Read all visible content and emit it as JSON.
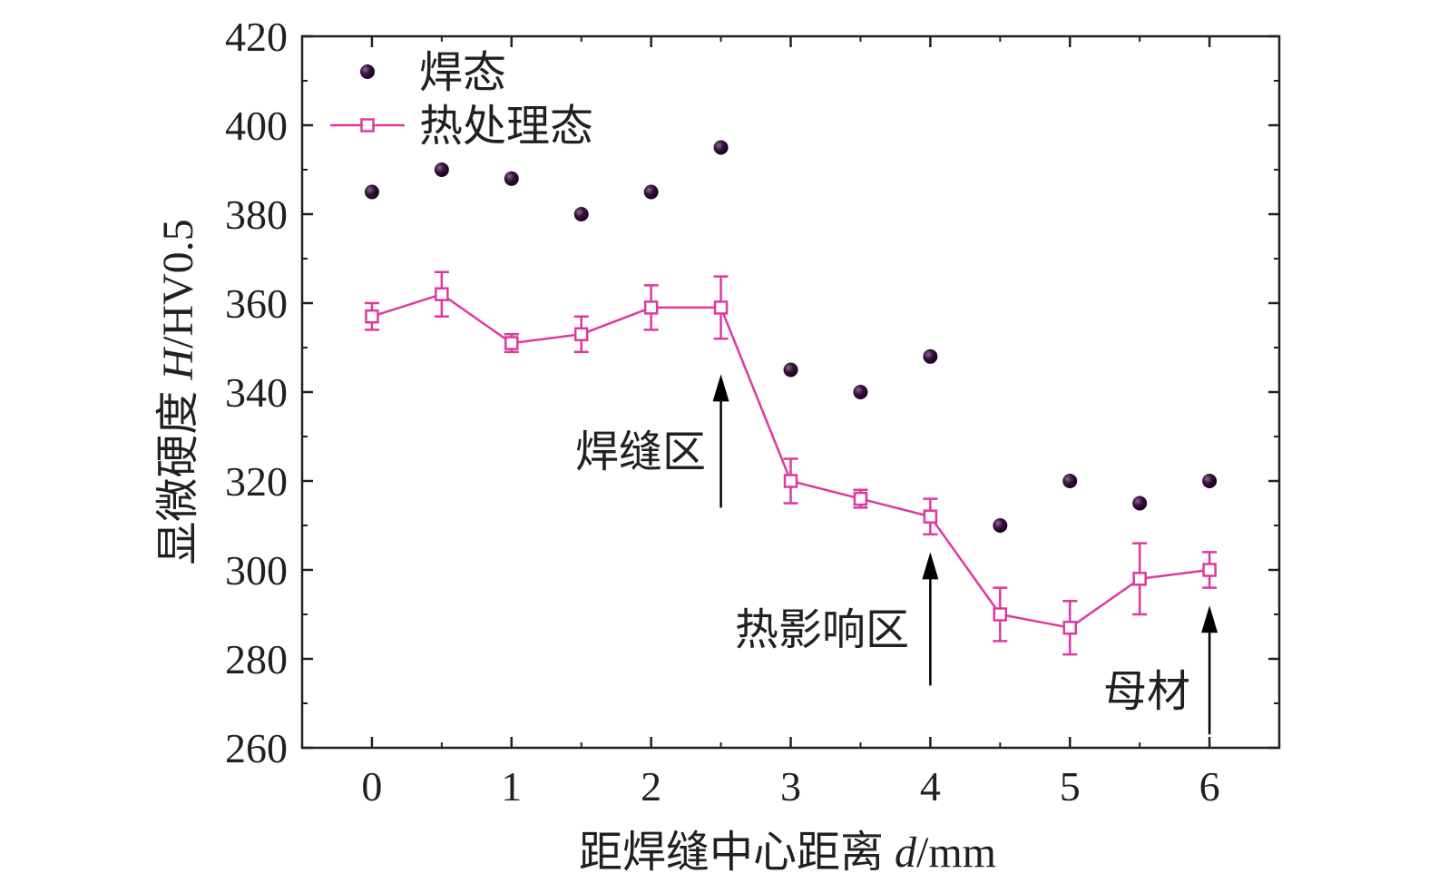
{
  "chart_data": {
    "type": "scatter",
    "xlabel_prefix": "距焊缝中心距离 ",
    "xlabel_var": "d",
    "xlabel_unit": "/mm",
    "ylabel_prefix": "显微硬度 ",
    "ylabel_var": "H",
    "ylabel_unit": "/HV0.5",
    "xlim": [
      -0.5,
      6.5
    ],
    "ylim": [
      260,
      420
    ],
    "xticks": [
      0,
      1,
      2,
      3,
      4,
      5,
      6
    ],
    "xtick_labels": [
      "0",
      "1",
      "2",
      "3",
      "4",
      "5",
      "6"
    ],
    "yticks": [
      260,
      280,
      300,
      320,
      340,
      360,
      380,
      400,
      420
    ],
    "ytick_labels": [
      "260",
      "280",
      "300",
      "320",
      "340",
      "360",
      "380",
      "400",
      "420"
    ],
    "legend_position": "top-left",
    "series": [
      {
        "name": "焊态",
        "style": "dots",
        "color": "#2a0a2e",
        "x": [
          0,
          0.5,
          1,
          1.5,
          2,
          2.5,
          3,
          3.5,
          4,
          4.5,
          5,
          5.5,
          6
        ],
        "y": [
          385,
          390,
          388,
          380,
          385,
          395,
          345,
          340,
          348,
          310,
          320,
          315,
          320
        ]
      },
      {
        "name": "热处理态",
        "style": "line-square-errorbar",
        "color": "#e0379f",
        "x": [
          0,
          0.5,
          1,
          1.5,
          2,
          2.5,
          3,
          3.5,
          4,
          4.5,
          5,
          5.5,
          6
        ],
        "y": [
          357,
          362,
          351,
          353,
          359,
          359,
          320,
          316,
          312,
          290,
          287,
          298,
          300
        ],
        "err": [
          3,
          5,
          2,
          4,
          5,
          7,
          5,
          2,
          4,
          6,
          6,
          8,
          4
        ]
      }
    ],
    "annotations": [
      {
        "text": "焊缝区",
        "arrow_x": 2.5,
        "arrow_from": 314,
        "arrow_to": 344
      },
      {
        "text": "热影响区",
        "arrow_x": 4,
        "arrow_from": 274,
        "arrow_to": 304
      },
      {
        "text": "母材",
        "arrow_x": 6,
        "arrow_from": 263,
        "arrow_to": 292
      }
    ]
  }
}
